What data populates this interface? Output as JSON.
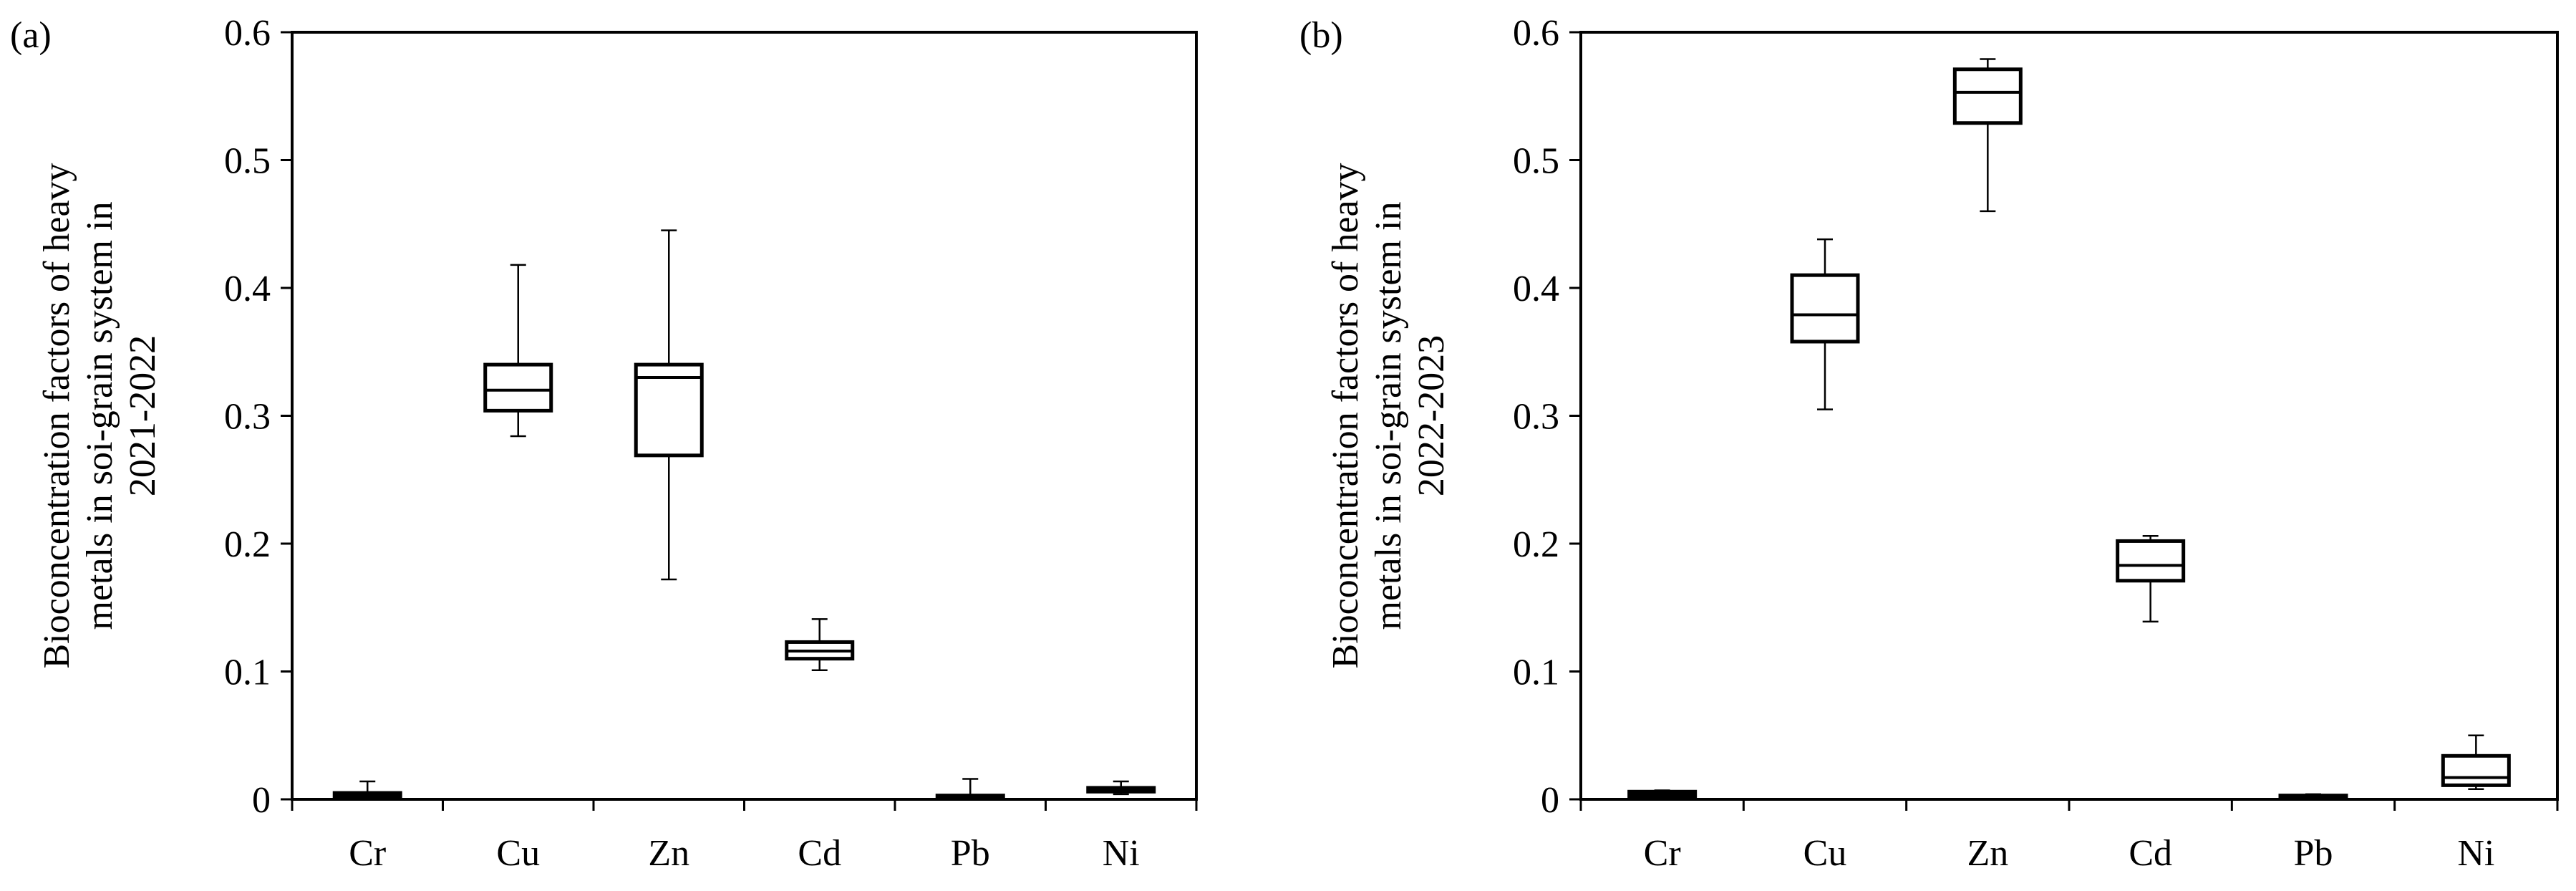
{
  "chart_data": [
    {
      "type": "box",
      "panel_label": "(a)",
      "ylabel_lines": [
        "Bioconcentration factors of heavy",
        "metals in soi-grain system in",
        "2021-2022"
      ],
      "xlabel": "",
      "ylim": [
        0,
        0.6
      ],
      "yticks": [
        "0",
        "0.1",
        "0.2",
        "0.3",
        "0.4",
        "0.5",
        "0.6"
      ],
      "categories": [
        "Cr",
        "Cu",
        "Zn",
        "Cd",
        "Pb",
        "Ni"
      ],
      "boxes": [
        {
          "category": "Cr",
          "min": 0.0,
          "q1": 0.001,
          "median": 0.003,
          "q3": 0.005,
          "max": 0.014
        },
        {
          "category": "Cu",
          "min": 0.284,
          "q1": 0.304,
          "median": 0.32,
          "q3": 0.34,
          "max": 0.418
        },
        {
          "category": "Zn",
          "min": 0.172,
          "q1": 0.269,
          "median": 0.33,
          "q3": 0.34,
          "max": 0.445
        },
        {
          "category": "Cd",
          "min": 0.101,
          "q1": 0.11,
          "median": 0.116,
          "q3": 0.123,
          "max": 0.141
        },
        {
          "category": "Pb",
          "min": 0.0,
          "q1": 0.001,
          "median": 0.002,
          "q3": 0.003,
          "max": 0.016
        },
        {
          "category": "Ni",
          "min": 0.004,
          "q1": 0.006,
          "median": 0.008,
          "q3": 0.009,
          "max": 0.014
        }
      ]
    },
    {
      "type": "box",
      "panel_label": "(b)",
      "ylabel_lines": [
        "Bioconcentration factors of heavy",
        "metals in soi-grain system in",
        "2022-2023"
      ],
      "xlabel": "",
      "ylim": [
        0,
        0.6
      ],
      "yticks": [
        "0",
        "0.1",
        "0.2",
        "0.3",
        "0.4",
        "0.5",
        "0.6"
      ],
      "categories": [
        "Cr",
        "Cu",
        "Zn",
        "Cd",
        "Pb",
        "Ni"
      ],
      "boxes": [
        {
          "category": "Cr",
          "min": 0.001,
          "q1": 0.002,
          "median": 0.004,
          "q3": 0.006,
          "max": 0.007
        },
        {
          "category": "Cu",
          "min": 0.305,
          "q1": 0.358,
          "median": 0.379,
          "q3": 0.41,
          "max": 0.438
        },
        {
          "category": "Zn",
          "min": 0.46,
          "q1": 0.529,
          "median": 0.553,
          "q3": 0.571,
          "max": 0.579
        },
        {
          "category": "Cd",
          "min": 0.139,
          "q1": 0.171,
          "median": 0.183,
          "q3": 0.202,
          "max": 0.206
        },
        {
          "category": "Pb",
          "min": 0.0,
          "q1": 0.001,
          "median": 0.002,
          "q3": 0.003,
          "max": 0.004
        },
        {
          "category": "Ni",
          "min": 0.008,
          "q1": 0.011,
          "median": 0.017,
          "q3": 0.034,
          "max": 0.05
        }
      ]
    }
  ]
}
